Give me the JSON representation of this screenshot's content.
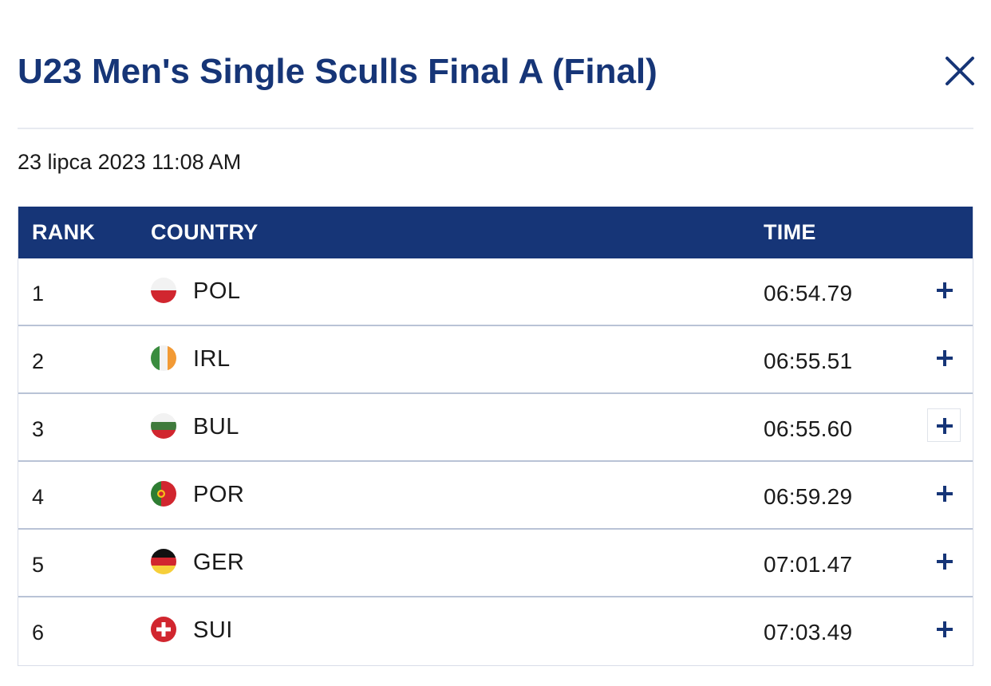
{
  "modal": {
    "title": "U23 Men's Single Sculls Final A (Final)",
    "close_icon": "close-icon",
    "date": "23 lipca 2023 11:08 AM"
  },
  "table": {
    "headers": {
      "rank": "RANK",
      "country": "COUNTRY",
      "time": "TIME"
    },
    "header_color": "#163577",
    "expand_icon": "plus-icon",
    "rows": [
      {
        "rank": "1",
        "country": "POL",
        "flag": "poland-flag-icon",
        "time": "06:54.79"
      },
      {
        "rank": "2",
        "country": "IRL",
        "flag": "ireland-flag-icon",
        "time": "06:55.51"
      },
      {
        "rank": "3",
        "country": "BUL",
        "flag": "bulgaria-flag-icon",
        "time": "06:55.60"
      },
      {
        "rank": "4",
        "country": "POR",
        "flag": "portugal-flag-icon",
        "time": "06:59.29"
      },
      {
        "rank": "5",
        "country": "GER",
        "flag": "germany-flag-icon",
        "time": "07:01.47"
      },
      {
        "rank": "6",
        "country": "SUI",
        "flag": "switzerland-flag-icon",
        "time": "07:03.49"
      }
    ]
  },
  "colors": {
    "brand_navy": "#163577",
    "row_divider": "#b9c3d6"
  }
}
